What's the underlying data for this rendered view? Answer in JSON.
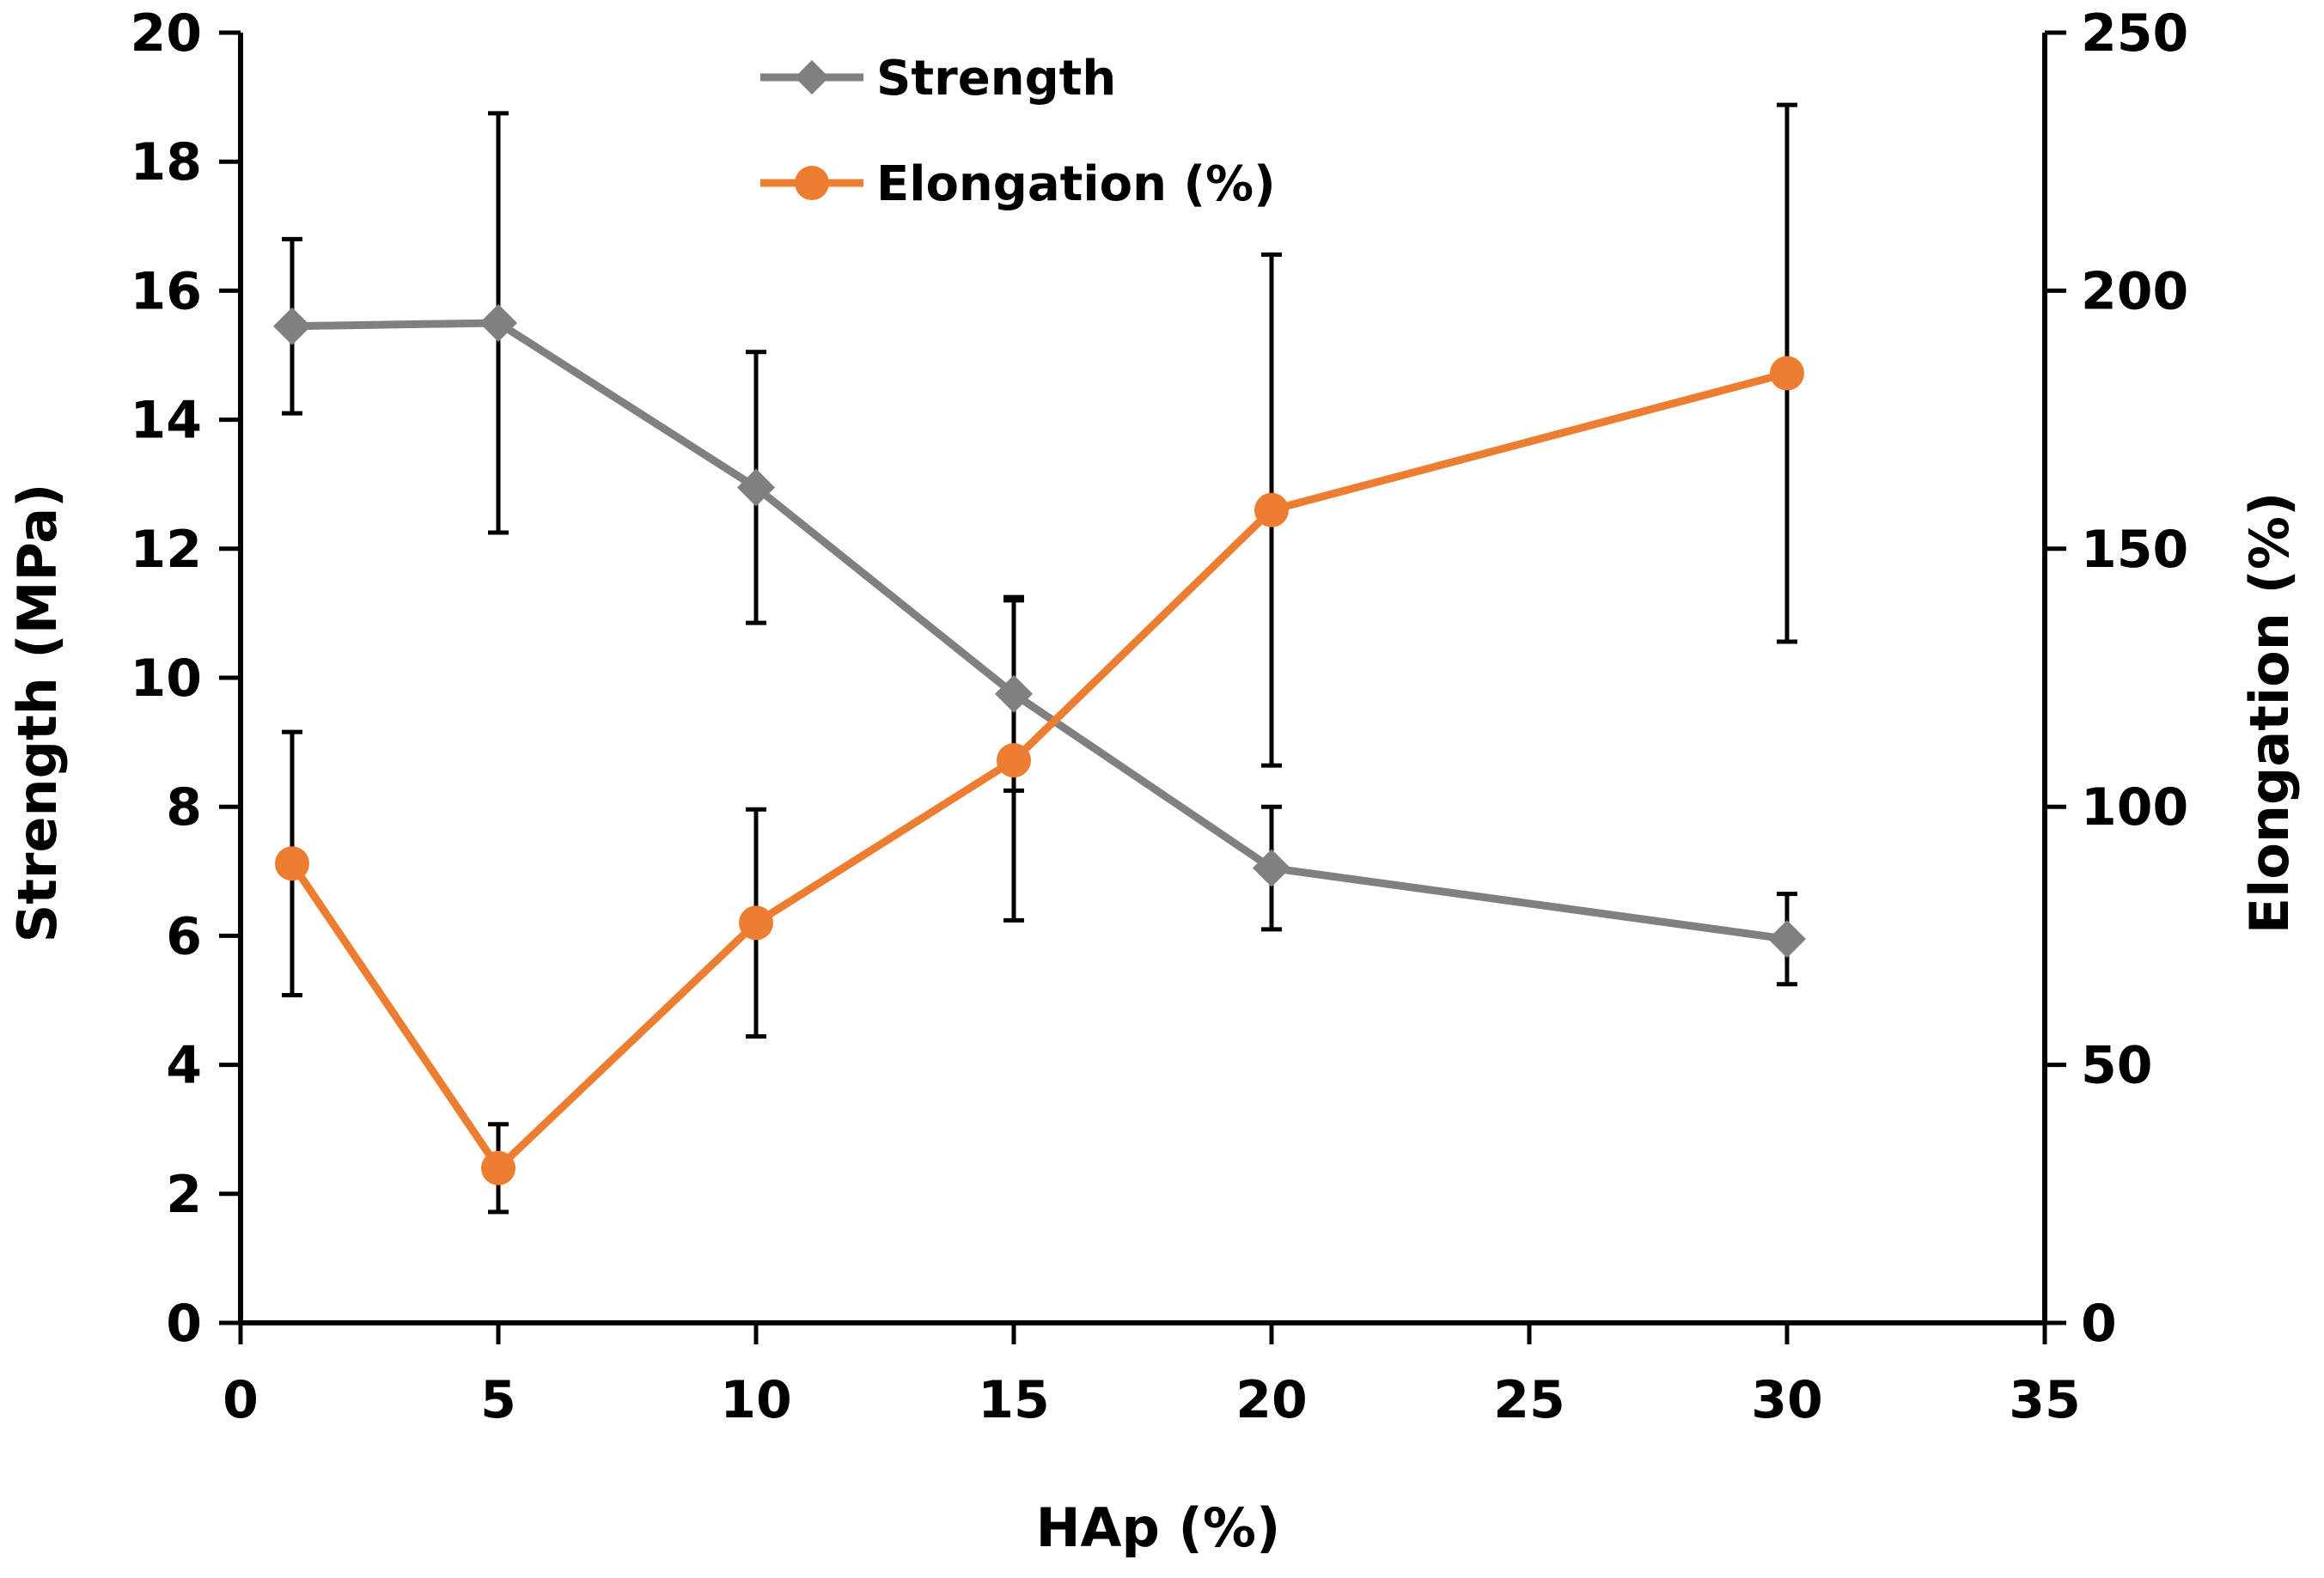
{
  "chart_data": {
    "type": "line",
    "title": "",
    "xlabel": "HAp (%)",
    "ylabel": "Strength (MPa)",
    "y2label": "Elongation (%)",
    "xlim": [
      0,
      35
    ],
    "ylim": [
      0,
      20
    ],
    "y2lim": [
      0,
      250
    ],
    "xticks": [
      0,
      5,
      10,
      15,
      20,
      25,
      30,
      35
    ],
    "yticks": [
      0,
      2,
      4,
      6,
      8,
      10,
      12,
      14,
      16,
      18,
      20
    ],
    "y2ticks": [
      0,
      50,
      100,
      150,
      200,
      250
    ],
    "grid": false,
    "legend_position": "top-center",
    "colors": {
      "strength": "#808080",
      "elongation": "#ED7D31",
      "errorbar": "#000000"
    },
    "series": [
      {
        "name": "Strength",
        "axis": "left",
        "marker": "diamond",
        "x": [
          1,
          5,
          10,
          15,
          20,
          30
        ],
        "values": [
          15.45,
          15.5,
          12.95,
          9.75,
          7.05,
          5.95
        ],
        "error": [
          1.35,
          3.25,
          2.1,
          1.5,
          0.95,
          0.7
        ]
      },
      {
        "name": "Elongation (%)",
        "axis": "right",
        "marker": "circle",
        "x": [
          1,
          5,
          10,
          15,
          20,
          30
        ],
        "values": [
          89,
          30,
          77.5,
          109,
          157.5,
          184
        ],
        "error": [
          25.5,
          8.5,
          22,
          31,
          49.5,
          52
        ]
      }
    ]
  }
}
